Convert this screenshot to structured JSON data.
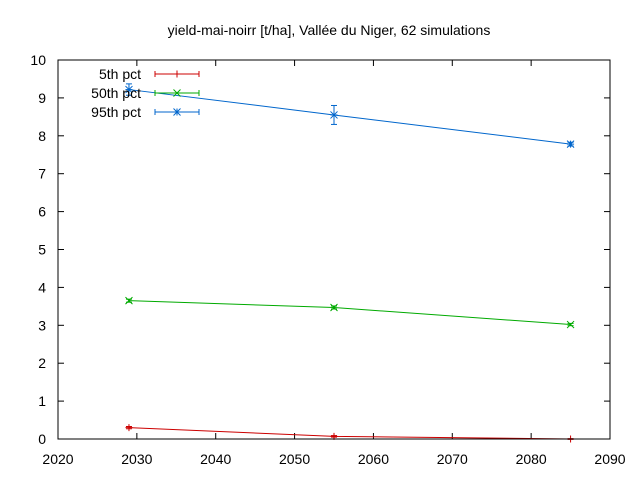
{
  "chart_data": {
    "type": "line",
    "title": "yield-mai-noirr [t/ha], Vallée du Niger, 62 simulations",
    "xlabel": "",
    "ylabel": "",
    "xlim": [
      2020,
      2090
    ],
    "ylim": [
      0,
      10
    ],
    "x_ticks": [
      "2020",
      "2030",
      "2040",
      "2050",
      "2060",
      "2070",
      "2080",
      "2090"
    ],
    "y_ticks": [
      "0",
      "1",
      "2",
      "3",
      "4",
      "5",
      "6",
      "7",
      "8",
      "9",
      "10"
    ],
    "grid": false,
    "legend_position": "top-left",
    "series": [
      {
        "name": "5th pct",
        "color": "#cc0000",
        "marker": "plus",
        "points": [
          {
            "x": 2029,
            "y": 0.3,
            "err": 0.03
          },
          {
            "x": 2055,
            "y": 0.07,
            "err": 0.02
          },
          {
            "x": 2085,
            "y": 0.0,
            "err": 0.01
          }
        ]
      },
      {
        "name": "50th pct",
        "color": "#00aa00",
        "marker": "cross",
        "points": [
          {
            "x": 2029,
            "y": 3.65,
            "err": 0.04
          },
          {
            "x": 2055,
            "y": 3.47,
            "err": 0.04
          },
          {
            "x": 2085,
            "y": 3.02,
            "err": 0.03
          }
        ]
      },
      {
        "name": "95th pct",
        "color": "#0066cc",
        "marker": "star",
        "points": [
          {
            "x": 2029,
            "y": 9.22,
            "err": 0.15
          },
          {
            "x": 2055,
            "y": 8.55,
            "err": 0.25
          },
          {
            "x": 2085,
            "y": 7.78,
            "err": 0.05
          }
        ]
      }
    ]
  }
}
